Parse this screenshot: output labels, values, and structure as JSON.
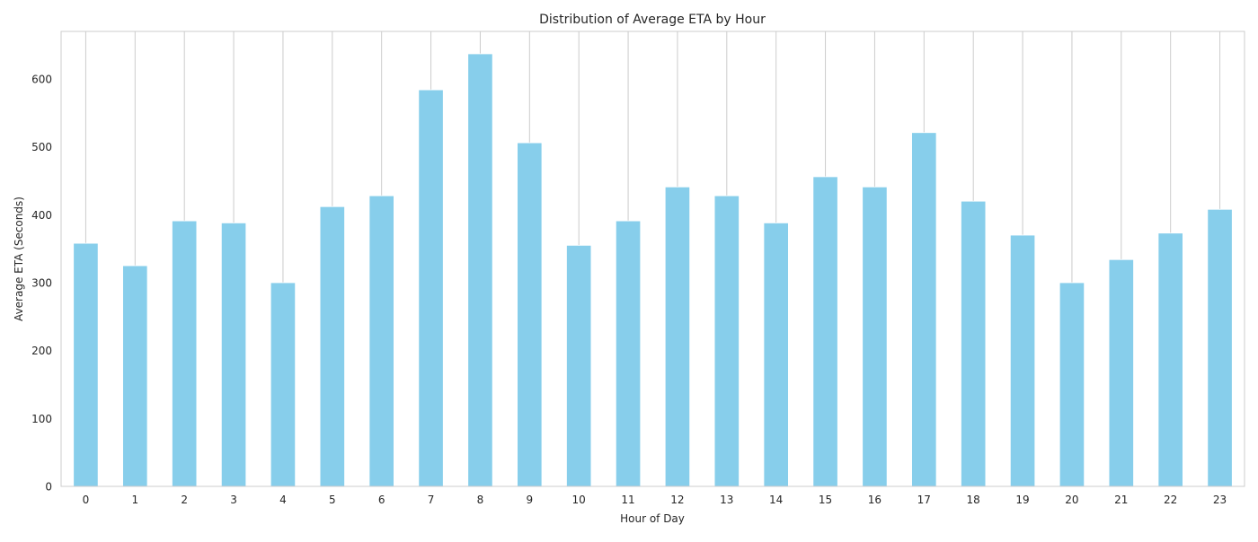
{
  "chart_data": {
    "type": "bar",
    "title": "Distribution of Average ETA by Hour",
    "xlabel": "Hour of Day",
    "ylabel": "Average ETA (Seconds)",
    "categories": [
      "0",
      "1",
      "2",
      "3",
      "4",
      "5",
      "6",
      "7",
      "8",
      "9",
      "10",
      "11",
      "12",
      "13",
      "14",
      "15",
      "16",
      "17",
      "18",
      "19",
      "20",
      "21",
      "22",
      "23"
    ],
    "values": [
      358,
      325,
      391,
      388,
      300,
      412,
      428,
      584,
      637,
      506,
      355,
      391,
      441,
      428,
      388,
      456,
      441,
      521,
      420,
      370,
      300,
      334,
      373,
      408
    ],
    "ylim": [
      0,
      670
    ],
    "yticks": [
      0,
      100,
      200,
      300,
      400,
      500,
      600
    ],
    "grid": "vertical",
    "legend": "none",
    "bar_color": "#87ceeb",
    "grid_color": "#cccccc",
    "frame_color": "#cccccc",
    "background": "#ffffff"
  }
}
